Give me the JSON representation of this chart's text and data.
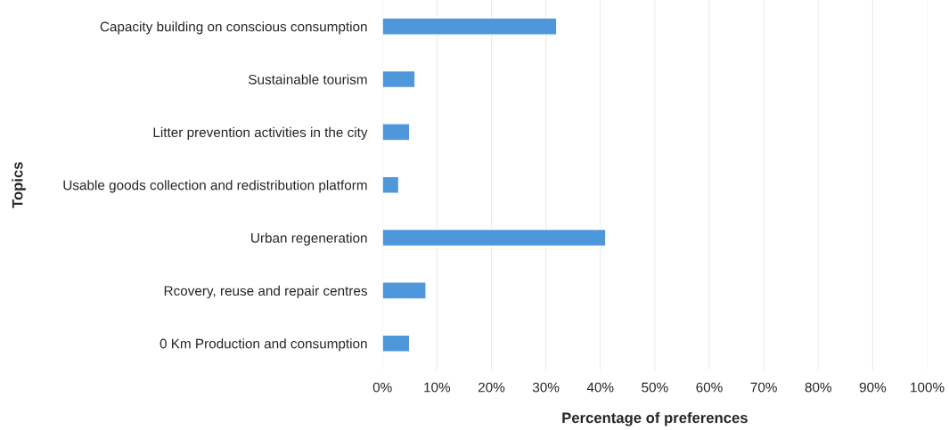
{
  "chart_data": {
    "type": "bar",
    "orientation": "horizontal",
    "xlabel": "Percentage of preferences",
    "ylabel": "Topics",
    "categories": [
      "Capacity building on conscious consumption",
      "Sustainable tourism",
      "Litter prevention activities in the city",
      "Usable goods collection and redistribution platform",
      "Urban regeneration",
      "Rcovery, reuse and repair centres",
      "0 Km Production and consumption"
    ],
    "values": [
      32,
      6,
      5,
      3,
      41,
      8,
      5
    ],
    "color": "#4f97db",
    "xlim": [
      0,
      100
    ],
    "xticks": [
      {
        "value": 0,
        "label": "0%"
      },
      {
        "value": 10,
        "label": "10%"
      },
      {
        "value": 20,
        "label": "20%"
      },
      {
        "value": 30,
        "label": "30%"
      },
      {
        "value": 40,
        "label": "40%"
      },
      {
        "value": 50,
        "label": "50%"
      },
      {
        "value": 60,
        "label": "60%"
      },
      {
        "value": 70,
        "label": "70%"
      },
      {
        "value": 80,
        "label": "80%"
      },
      {
        "value": 90,
        "label": "90%"
      },
      {
        "value": 100,
        "label": "100%"
      }
    ],
    "grid": "x",
    "legend": false
  }
}
